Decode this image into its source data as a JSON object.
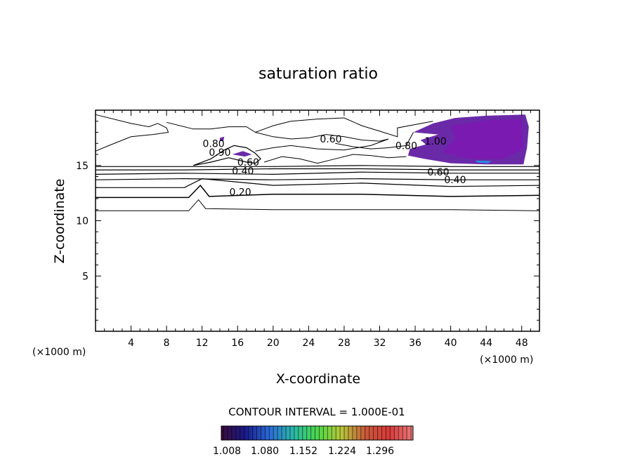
{
  "chart_data": {
    "type": "contour",
    "title": "saturation ratio",
    "xlabel": "X-coordinate",
    "ylabel": "Z-coordinate",
    "x_unit_left": "(×1000 m)",
    "x_unit_right": "(×1000 m)",
    "xlim": [
      0,
      50
    ],
    "ylim": [
      0,
      20
    ],
    "x_ticks": [
      4,
      8,
      12,
      16,
      20,
      24,
      28,
      32,
      36,
      40,
      44,
      48
    ],
    "y_ticks": [
      5,
      10,
      15
    ],
    "contour_interval_text": "CONTOUR INTERVAL = 1.000E-01",
    "contour_labels": [
      {
        "text": "0.60",
        "x": 26.5,
        "y": 17.4
      },
      {
        "text": "0.80",
        "x": 13.3,
        "y": 17.0
      },
      {
        "text": "0.90",
        "x": 14.0,
        "y": 16.2
      },
      {
        "text": "0.60",
        "x": 17.2,
        "y": 15.3
      },
      {
        "text": "0.40",
        "x": 16.6,
        "y": 14.5
      },
      {
        "text": "0.20",
        "x": 16.3,
        "y": 12.6
      },
      {
        "text": "0.80",
        "x": 35.0,
        "y": 16.8
      },
      {
        "text": "1.00",
        "x": 38.3,
        "y": 17.2
      },
      {
        "text": "0.60",
        "x": 38.6,
        "y": 14.4
      },
      {
        "text": "0.40",
        "x": 40.5,
        "y": 13.7
      }
    ],
    "colorbar": {
      "ticks": [
        "1.008",
        "1.080",
        "1.152",
        "1.224",
        "1.296"
      ],
      "colors": [
        "#3a0a3a",
        "#1a1a8a",
        "#2a6ad8",
        "#2ab8a8",
        "#4ad84a",
        "#b8c83a",
        "#c85a3a",
        "#d83a3a",
        "#e87a7a"
      ]
    }
  }
}
